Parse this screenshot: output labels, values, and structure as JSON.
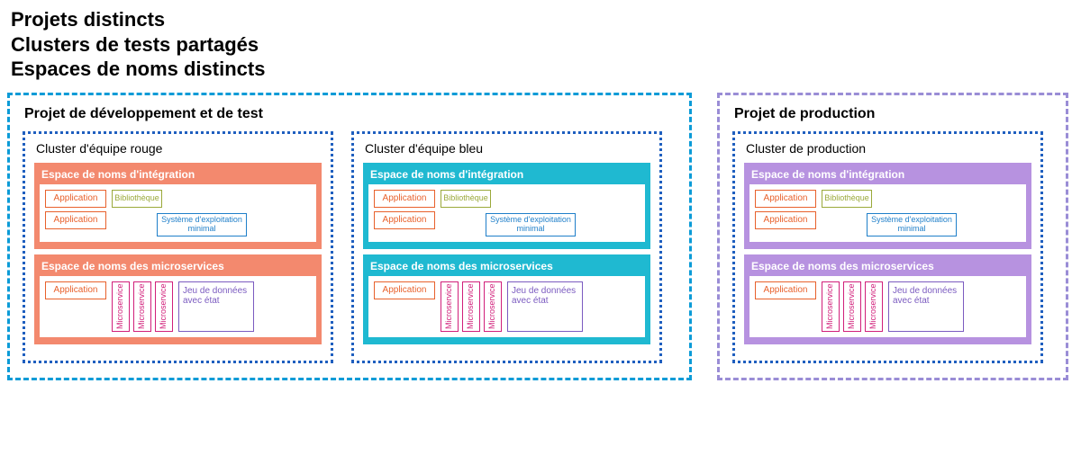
{
  "heading": {
    "line1": "Projets distincts",
    "line2": "Clusters de tests partagés",
    "line3": "Espaces de noms distincts"
  },
  "colors": {
    "dev_project_border": "#0b9bd7",
    "prod_project_border": "#9a8dd6",
    "cluster_border": "#1f5fbf",
    "red_ns_bg": "#f3896e",
    "blue_ns_bg": "#1fb9d1",
    "purple_ns_bg": "#b792e0",
    "app_border": "#e8612c",
    "lib_border": "#9aa93a",
    "os_border": "#1f7fc9",
    "ms_border": "#d11f7a",
    "ds_border": "#7b5bc0",
    "white": "#ffffff",
    "ns_title_color": "#ffffff"
  },
  "layout": {
    "dev_project_width": 760,
    "prod_project_width": 390,
    "cluster_width": 345
  },
  "projects": [
    {
      "key": "dev",
      "title": "Projet de développement et de test",
      "border_color_key": "dev_project_border",
      "clusters": [
        {
          "title": "Cluster d'équipe rouge",
          "ns_bg_key": "red_ns_bg"
        },
        {
          "title": "Cluster d'équipe bleu",
          "ns_bg_key": "blue_ns_bg"
        }
      ]
    },
    {
      "key": "prod",
      "title": "Projet de production",
      "border_color_key": "prod_project_border",
      "clusters": [
        {
          "title": "Cluster de production",
          "ns_bg_key": "purple_ns_bg"
        }
      ]
    }
  ],
  "namespace_labels": {
    "integration": "Espace de noms d'intégration",
    "microservices": "Espace de noms des microservices"
  },
  "block_labels": {
    "application": "Application",
    "library": "Bibliothèque",
    "os_min": "Système d'exploitation minimal",
    "microservice": "Microservice",
    "stateful_ds": "Jeu de données avec état"
  }
}
